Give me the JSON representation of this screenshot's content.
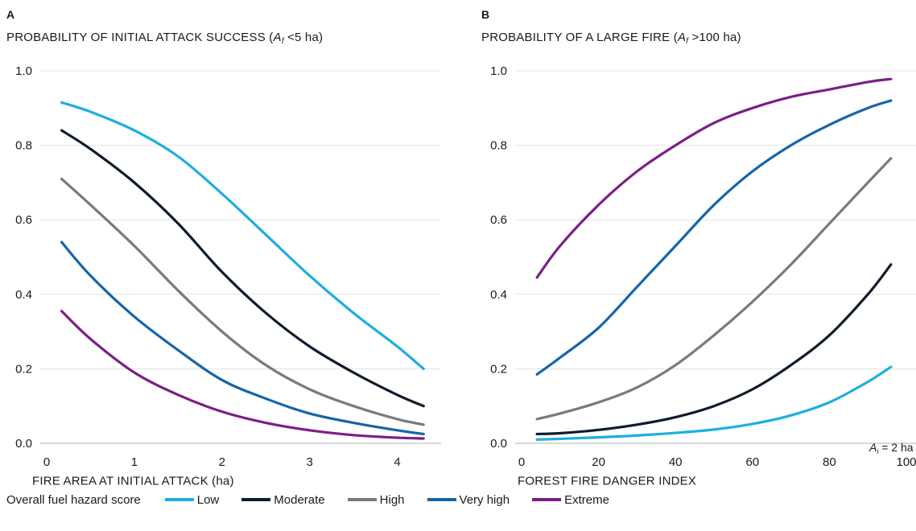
{
  "panels": {
    "a": {
      "letter": "A",
      "title_pre": "PROBABILITY OF INITIAL ATTACK SUCCESS (",
      "title_var": "A",
      "title_sub": "f",
      "title_post": " <5 ha)",
      "xlabel": "FIRE AREA AT INITIAL ATTACK (ha)"
    },
    "b": {
      "letter": "B",
      "title_pre": "PROBABILITY OF A LARGE FIRE (",
      "title_var": "A",
      "title_sub": "f",
      "title_post": " >100 ha)",
      "xlabel": "FOREST FIRE DANGER INDEX",
      "annotation_var": "A",
      "annotation_sub": "i",
      "annotation_post": " = 2 ha"
    }
  },
  "legend": {
    "title": "Overall fuel hazard score",
    "items": [
      {
        "label": "Low",
        "color": "#1eaee0"
      },
      {
        "label": "Moderate",
        "color": "#0f1b2d"
      },
      {
        "label": "High",
        "color": "#7a7a7a"
      },
      {
        "label": "Very high",
        "color": "#1565a8"
      },
      {
        "label": "Extreme",
        "color": "#7b1f86"
      }
    ]
  },
  "chart_data": [
    {
      "type": "line",
      "panel": "A",
      "title": "PROBABILITY OF INITIAL ATTACK SUCCESS (Af <5 ha)",
      "xlabel": "FIRE AREA AT INITIAL ATTACK (ha)",
      "xlim": [
        0,
        4.5
      ],
      "ylim": [
        0,
        1.0
      ],
      "xticks": [
        "0",
        "1",
        "2",
        "3",
        "4"
      ],
      "yticks": [
        "0.0",
        "0.2",
        "0.4",
        "0.6",
        "0.8",
        "1.0"
      ],
      "grid": "horizontal",
      "series": [
        {
          "name": "Low",
          "color": "#1eaee0",
          "x": [
            0.17,
            0.5,
            1.0,
            1.5,
            2.0,
            2.5,
            3.0,
            3.5,
            4.0,
            4.3
          ],
          "y": [
            0.915,
            0.89,
            0.84,
            0.77,
            0.67,
            0.56,
            0.45,
            0.35,
            0.26,
            0.2
          ]
        },
        {
          "name": "Moderate",
          "color": "#0f1b2d",
          "x": [
            0.17,
            0.5,
            1.0,
            1.5,
            2.0,
            2.5,
            3.0,
            3.5,
            4.0,
            4.3
          ],
          "y": [
            0.84,
            0.79,
            0.7,
            0.59,
            0.46,
            0.35,
            0.26,
            0.19,
            0.13,
            0.1
          ]
        },
        {
          "name": "High",
          "color": "#7a7a7a",
          "x": [
            0.17,
            0.5,
            1.0,
            1.5,
            2.0,
            2.5,
            3.0,
            3.5,
            4.0,
            4.3
          ],
          "y": [
            0.71,
            0.64,
            0.53,
            0.41,
            0.3,
            0.21,
            0.145,
            0.1,
            0.065,
            0.05
          ]
        },
        {
          "name": "Very high",
          "color": "#1565a8",
          "x": [
            0.17,
            0.5,
            1.0,
            1.5,
            2.0,
            2.5,
            3.0,
            3.5,
            4.0,
            4.3
          ],
          "y": [
            0.54,
            0.45,
            0.34,
            0.25,
            0.17,
            0.12,
            0.08,
            0.055,
            0.035,
            0.025
          ]
        },
        {
          "name": "Extreme",
          "color": "#7b1f86",
          "x": [
            0.17,
            0.5,
            1.0,
            1.5,
            2.0,
            2.5,
            3.0,
            3.5,
            4.0,
            4.3
          ],
          "y": [
            0.355,
            0.28,
            0.19,
            0.13,
            0.085,
            0.055,
            0.035,
            0.022,
            0.015,
            0.013
          ]
        }
      ]
    },
    {
      "type": "line",
      "panel": "B",
      "title": "PROBABILITY OF A LARGE FIRE (Af >100 ha)",
      "xlabel": "FOREST FIRE DANGER INDEX",
      "xlim": [
        0,
        100
      ],
      "ylim": [
        0,
        1.0
      ],
      "xticks": [
        "0",
        "20",
        "40",
        "60",
        "80",
        "100"
      ],
      "yticks": [
        "0.0",
        "0.2",
        "0.4",
        "0.6",
        "0.8",
        "1.0"
      ],
      "grid": "horizontal",
      "annotation": "Ai = 2 ha",
      "series": [
        {
          "name": "Low",
          "color": "#1eaee0",
          "x": [
            4,
            10,
            20,
            30,
            40,
            50,
            60,
            70,
            80,
            90,
            96
          ],
          "y": [
            0.01,
            0.012,
            0.016,
            0.021,
            0.028,
            0.037,
            0.052,
            0.075,
            0.11,
            0.165,
            0.205
          ]
        },
        {
          "name": "Moderate",
          "color": "#0f1b2d",
          "x": [
            4,
            10,
            20,
            30,
            40,
            50,
            60,
            70,
            80,
            90,
            96
          ],
          "y": [
            0.025,
            0.027,
            0.036,
            0.05,
            0.07,
            0.1,
            0.145,
            0.21,
            0.29,
            0.4,
            0.48
          ]
        },
        {
          "name": "High",
          "color": "#7a7a7a",
          "x": [
            4,
            10,
            20,
            30,
            40,
            50,
            60,
            70,
            80,
            90,
            96
          ],
          "y": [
            0.065,
            0.08,
            0.11,
            0.15,
            0.21,
            0.29,
            0.38,
            0.48,
            0.59,
            0.7,
            0.765
          ]
        },
        {
          "name": "Very high",
          "color": "#1565a8",
          "x": [
            4,
            10,
            20,
            30,
            40,
            50,
            60,
            70,
            80,
            90,
            96
          ],
          "y": [
            0.185,
            0.23,
            0.31,
            0.42,
            0.53,
            0.64,
            0.73,
            0.8,
            0.855,
            0.9,
            0.92
          ]
        },
        {
          "name": "Extreme",
          "color": "#7b1f86",
          "x": [
            4,
            10,
            20,
            30,
            40,
            50,
            60,
            70,
            80,
            90,
            96
          ],
          "y": [
            0.445,
            0.53,
            0.64,
            0.73,
            0.8,
            0.86,
            0.9,
            0.93,
            0.95,
            0.97,
            0.978
          ]
        }
      ]
    }
  ]
}
